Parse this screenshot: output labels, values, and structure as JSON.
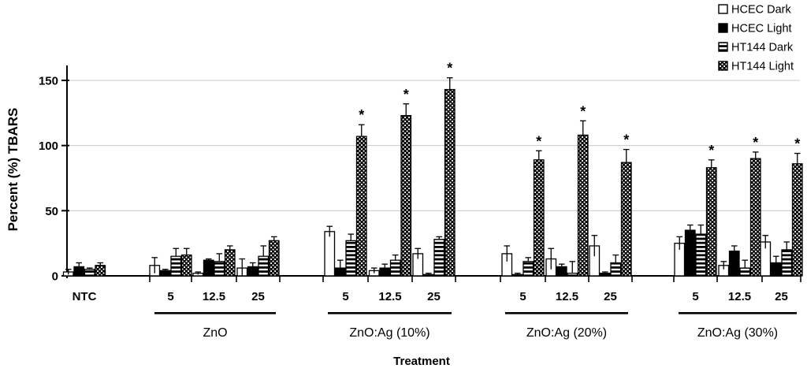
{
  "chart_data": {
    "type": "bar",
    "title": "",
    "xlabel": "Treatment",
    "ylabel": "Percent (%) TBARS",
    "ylim": [
      0,
      160
    ],
    "yticks": [
      0,
      50,
      100,
      150
    ],
    "grid": true,
    "legend_position": "top-right",
    "significance_marker": "*",
    "series": [
      {
        "name": "HCEC Dark",
        "pattern": "open",
        "color": "#ffffff"
      },
      {
        "name": "HCEC Light",
        "pattern": "solid",
        "color": "#000000"
      },
      {
        "name": "HT144 Dark",
        "pattern": "hstripe",
        "color": "#000000"
      },
      {
        "name": "HT144 Light",
        "pattern": "checker",
        "color": "#000000"
      }
    ],
    "groups": [
      {
        "name": "NTC",
        "show_rule": false,
        "clusters": [
          {
            "dose": "NTC",
            "values": [
              3,
              7,
              5,
              8
            ],
            "errors": [
              2,
              3,
              1,
              2
            ],
            "sig": [
              false,
              false,
              false,
              false
            ]
          }
        ]
      },
      {
        "name": "ZnO",
        "show_rule": true,
        "clusters": [
          {
            "dose": "5",
            "values": [
              8,
              4,
              15,
              16
            ],
            "errors": [
              6,
              1,
              6,
              5
            ],
            "sig": [
              false,
              false,
              false,
              false
            ]
          },
          {
            "dose": "12.5",
            "values": [
              2,
              12,
              11,
              20
            ],
            "errors": [
              1,
              1,
              6,
              3
            ],
            "sig": [
              false,
              false,
              false,
              false
            ]
          },
          {
            "dose": "25",
            "values": [
              6,
              7,
              15,
              27
            ],
            "errors": [
              7,
              3,
              8,
              3
            ],
            "sig": [
              false,
              false,
              false,
              false
            ]
          }
        ]
      },
      {
        "name": "ZnO:Ag (10%)",
        "show_rule": true,
        "clusters": [
          {
            "dose": "5",
            "values": [
              34,
              6,
              27,
              107
            ],
            "errors": [
              4,
              6,
              5,
              9
            ],
            "sig": [
              false,
              false,
              false,
              true
            ]
          },
          {
            "dose": "12.5",
            "values": [
              4,
              6,
              12,
              123
            ],
            "errors": [
              2,
              3,
              4,
              9
            ],
            "sig": [
              false,
              false,
              false,
              true
            ]
          },
          {
            "dose": "25",
            "values": [
              17,
              1,
              28,
              143
            ],
            "errors": [
              4,
              1,
              2,
              9
            ],
            "sig": [
              false,
              false,
              false,
              true
            ]
          }
        ]
      },
      {
        "name": "ZnO:Ag (20%)",
        "show_rule": true,
        "clusters": [
          {
            "dose": "5",
            "values": [
              17,
              1,
              11,
              89
            ],
            "errors": [
              6,
              1,
              3,
              7
            ],
            "sig": [
              false,
              false,
              false,
              true
            ]
          },
          {
            "dose": "12.5",
            "values": [
              13,
              7,
              2,
              108
            ],
            "errors": [
              8,
              2,
              9,
              11
            ],
            "sig": [
              false,
              false,
              false,
              true
            ]
          },
          {
            "dose": "25",
            "values": [
              23,
              2,
              10,
              87
            ],
            "errors": [
              8,
              1,
              6,
              10
            ],
            "sig": [
              false,
              false,
              false,
              true
            ]
          }
        ]
      },
      {
        "name": "ZnO:Ag (30%)",
        "show_rule": true,
        "clusters": [
          {
            "dose": "5",
            "values": [
              25,
              35,
              32,
              83
            ],
            "errors": [
              5,
              4,
              7,
              6
            ],
            "sig": [
              false,
              false,
              false,
              true
            ]
          },
          {
            "dose": "12.5",
            "values": [
              8,
              19,
              6,
              90
            ],
            "errors": [
              3,
              4,
              6,
              5
            ],
            "sig": [
              false,
              false,
              false,
              true
            ]
          },
          {
            "dose": "25",
            "values": [
              26,
              10,
              20,
              86
            ],
            "errors": [
              5,
              5,
              6,
              8
            ],
            "sig": [
              false,
              false,
              false,
              true
            ]
          }
        ]
      }
    ]
  },
  "colors": {
    "bar_outline": "#000000",
    "grid": "#c8c8c8",
    "background": "#ffffff",
    "text": "#000000"
  }
}
